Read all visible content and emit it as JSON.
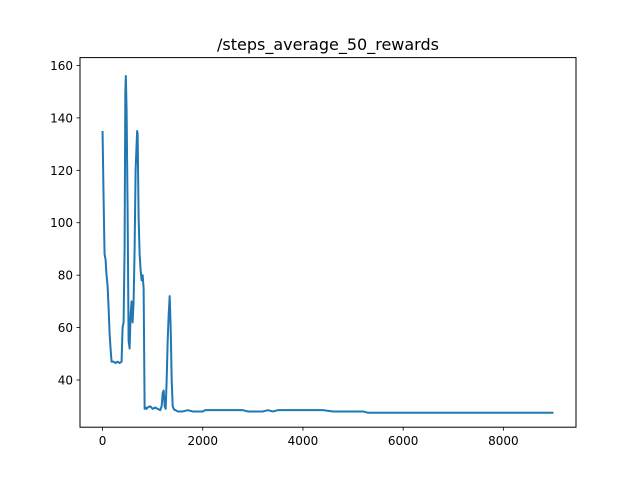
{
  "chart_data": {
    "type": "line",
    "title": "/steps_average_50_rewards",
    "xlabel": "",
    "ylabel": "",
    "xlim": [
      -450,
      9450
    ],
    "ylim": [
      22,
      163
    ],
    "xticks": [
      0,
      2000,
      4000,
      6000,
      8000
    ],
    "xtick_labels": [
      "0",
      "2000",
      "4000",
      "6000",
      "8000"
    ],
    "yticks": [
      40,
      60,
      80,
      100,
      120,
      140,
      160
    ],
    "ytick_labels": [
      "40",
      "60",
      "80",
      "100",
      "120",
      "140",
      "160"
    ],
    "grid": false,
    "legend": "none",
    "series": [
      {
        "color": "#1f77b4",
        "x": [
          0,
          20,
          40,
          60,
          80,
          100,
          120,
          140,
          160,
          180,
          220,
          260,
          300,
          340,
          380,
          400,
          420,
          440,
          455,
          465,
          480,
          500,
          520,
          540,
          560,
          580,
          600,
          620,
          640,
          660,
          690,
          700,
          710,
          720,
          740,
          760,
          780,
          800,
          820,
          840,
          860,
          880,
          900,
          950,
          1000,
          1050,
          1100,
          1150,
          1180,
          1200,
          1220,
          1240,
          1260,
          1280,
          1300,
          1320,
          1340,
          1360,
          1380,
          1400,
          1420,
          1440,
          1460,
          1500,
          1600,
          1700,
          1800,
          1900,
          2000,
          2050,
          2100,
          2200,
          2300,
          2400,
          2500,
          2600,
          2700,
          2800,
          2900,
          3000,
          3100,
          3200,
          3300,
          3400,
          3500,
          3600,
          3700,
          3800,
          3900,
          4000,
          4200,
          4400,
          4600,
          4800,
          5000,
          5200,
          5300,
          5500,
          6000,
          6500,
          7000,
          7500,
          8000,
          8500,
          9000
        ],
        "y": [
          135,
          110,
          88,
          86,
          80,
          76,
          68,
          58,
          52,
          47,
          47,
          46.5,
          47,
          46.5,
          47,
          60,
          62,
          90,
          150,
          156,
          143,
          105,
          55,
          52,
          65,
          70,
          62,
          70,
          90,
          120,
          135,
          134,
          118,
          102,
          88,
          82,
          78,
          80,
          75,
          29,
          29.5,
          29,
          29.5,
          30,
          29,
          29.5,
          29,
          28.5,
          30,
          35,
          36,
          30,
          29,
          40,
          55,
          65,
          72,
          60,
          40,
          30,
          29,
          28.5,
          28.5,
          28,
          28,
          28.5,
          28,
          28,
          28,
          28.5,
          28.5,
          28.5,
          28.5,
          28.5,
          28.5,
          28.5,
          28.5,
          28.5,
          28,
          28,
          28,
          28,
          28.5,
          28,
          28.5,
          28.5,
          28.5,
          28.5,
          28.5,
          28.5,
          28.5,
          28.5,
          28,
          28,
          28,
          28,
          27.5,
          27.5,
          27.5,
          27.5,
          27.5,
          27.5,
          27.5,
          27.5,
          27.5
        ]
      }
    ]
  }
}
